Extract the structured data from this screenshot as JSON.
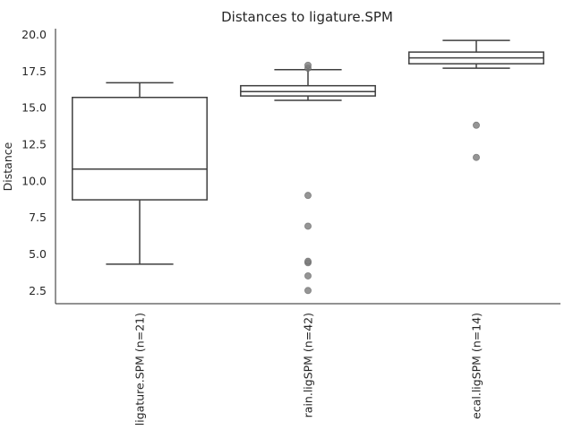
{
  "chart_data": {
    "type": "box",
    "title": "Distances to ligature.SPM",
    "xlabel": "",
    "ylabel": "Distance",
    "ylim": [
      1.6,
      20.4
    ],
    "yticks": [
      2.5,
      5.0,
      7.5,
      10.0,
      12.5,
      15.0,
      17.5,
      20.0
    ],
    "ytick_labels": [
      "2.5",
      "5.0",
      "7.5",
      "10.0",
      "12.5",
      "15.0",
      "17.5",
      "20.0"
    ],
    "categories": [
      "ligature.SPM (n=21)",
      "rain.ligSPM (n=42)",
      "ecal.ligSPM (n=14)"
    ],
    "boxes": [
      {
        "whisker_low": 4.3,
        "q1": 8.7,
        "median": 10.8,
        "q3": 15.7,
        "whisker_high": 16.7,
        "outliers": []
      },
      {
        "whisker_low": 15.5,
        "q1": 15.8,
        "median": 16.1,
        "q3": 16.5,
        "whisker_high": 17.6,
        "outliers": [
          2.5,
          3.5,
          4.4,
          4.5,
          6.9,
          9.0,
          17.7,
          17.9
        ]
      },
      {
        "whisker_low": 17.7,
        "q1": 18.0,
        "median": 18.4,
        "q3": 18.8,
        "whisker_high": 19.6,
        "outliers": [
          11.6,
          13.8
        ]
      }
    ],
    "colors": {
      "line": "#3f3f3f",
      "outlier": "#7a7a7a"
    }
  }
}
